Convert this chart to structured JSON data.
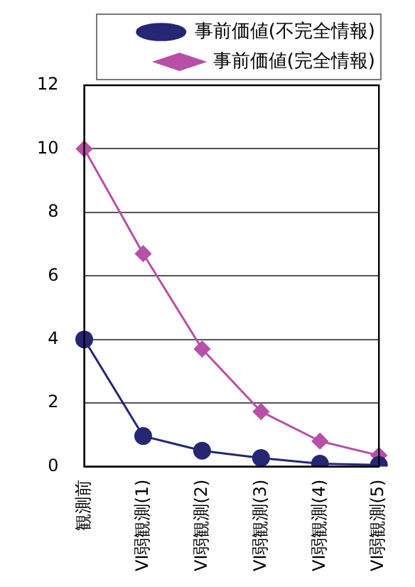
{
  "chart_data": {
    "type": "line",
    "categories": [
      "観測前",
      "VI弱観測(1)",
      "VI弱観測(2)",
      "VI弱観測(3)",
      "VI弱観測(4)",
      "VI弱観測(5)"
    ],
    "series": [
      {
        "name": "事前価値(不完全情報)",
        "color": "#262673",
        "marker": "circle",
        "values": [
          4,
          0.96,
          0.5,
          0.27,
          0.09,
          0.05
        ]
      },
      {
        "name": "事前価値(完全情報)",
        "color": "#b84fa8",
        "marker": "diamond",
        "values": [
          10,
          6.7,
          3.7,
          1.73,
          0.8,
          0.35
        ]
      }
    ],
    "ylim": [
      0,
      12
    ],
    "yticks": [
      0,
      2,
      4,
      6,
      8,
      10,
      12
    ],
    "grid": "y",
    "legend": "top",
    "line_style": "solid"
  }
}
